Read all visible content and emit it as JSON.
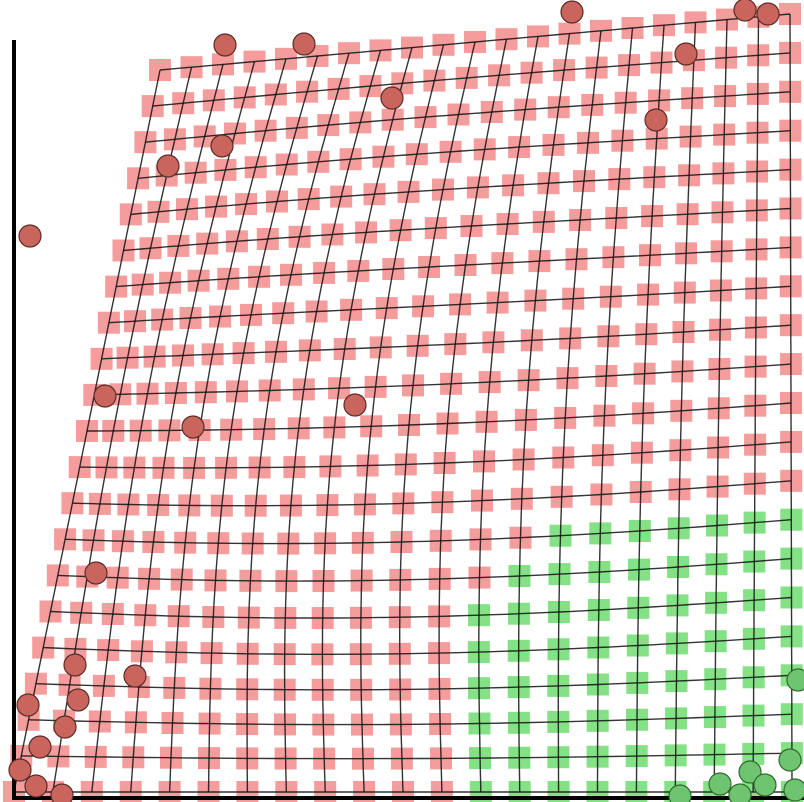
{
  "colors": {
    "background": "#ffffff",
    "red_marker": "#f27c7c",
    "red_marker_opacity": 0.75,
    "green_marker": "#66d966",
    "green_marker_opacity": 0.8,
    "red_point": "#c9655d",
    "green_point": "#6fc46f",
    "grid_line": "#111111",
    "frame_stroke": "#000000"
  },
  "scene": {
    "description_kind": "deformed mesh with sampled points",
    "grid_lines_per_direction": 20,
    "point_classes": [
      "red",
      "green"
    ]
  }
}
